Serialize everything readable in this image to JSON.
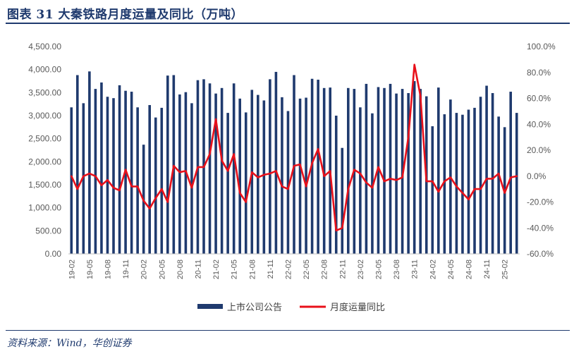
{
  "header": {
    "title": "图表 31    大秦铁路月度运量及同比（万吨）"
  },
  "footer": {
    "source": "资料来源：Wind，华创证券"
  },
  "colors": {
    "bar": "#1f3a6e",
    "line": "#e8101a",
    "accent": "#1f3a6e"
  },
  "chart_data": {
    "type": "bar",
    "title": "大秦铁路月度运量及同比（万吨）",
    "x_tick_labels": [
      "19-02",
      "19-05",
      "19-08",
      "19-11",
      "20-02",
      "20-05",
      "20-08",
      "20-11",
      "21-02",
      "21-05",
      "21-08",
      "21-11",
      "22-02",
      "22-05",
      "22-08",
      "22-11",
      "23-02",
      "23-05",
      "23-08",
      "23-11",
      "24-02",
      "24-05",
      "24-08",
      "24-11",
      "25-02"
    ],
    "y_left": {
      "ylim": [
        0,
        4500
      ],
      "ticks": [
        "0.00",
        "500.00",
        "1,000.00",
        "1,500.00",
        "2,000.00",
        "2,500.00",
        "3,000.00",
        "3,500.00",
        "4,000.00",
        "4,500.00"
      ]
    },
    "y_right": {
      "ylim": [
        -60,
        100
      ],
      "ticks": [
        "-60.0%",
        "-40.0%",
        "-20.0%",
        "0.0%",
        "20.0%",
        "40.0%",
        "60.0%",
        "80.0%",
        "100.0%"
      ]
    },
    "legend": [
      "上市公司公告",
      "月度运量同比"
    ],
    "series": [
      {
        "name": "上市公司公告",
        "type": "bar",
        "axis": "left",
        "values": [
          3180,
          3880,
          3270,
          3960,
          3580,
          3720,
          3410,
          3380,
          3660,
          3540,
          3520,
          3180,
          2370,
          3230,
          2960,
          3170,
          3870,
          3880,
          3460,
          3510,
          3270,
          3770,
          3790,
          3700,
          3480,
          3600,
          3060,
          3700,
          3370,
          3070,
          3560,
          3450,
          3330,
          3790,
          3950,
          3400,
          3100,
          3880,
          3370,
          3390,
          3800,
          3780,
          3600,
          3610,
          3000,
          2300,
          3600,
          3580,
          3180,
          3690,
          3050,
          3620,
          3600,
          3690,
          3480,
          3580,
          3490,
          3750,
          3580,
          3420,
          2770,
          3610,
          3030,
          3350,
          3060,
          3020,
          3130,
          3170,
          3410,
          3650,
          3490,
          2980,
          2750,
          3520,
          3060
        ]
      },
      {
        "name": "月度运量同比",
        "type": "line",
        "axis": "right",
        "values": [
          0,
          -10,
          0,
          2,
          0,
          -7,
          -3,
          -9,
          -11,
          5,
          -8,
          -8,
          -19,
          -25,
          -17,
          -10,
          -20,
          8,
          3,
          4,
          -9,
          7,
          7,
          17,
          44,
          12,
          4,
          17,
          -13,
          -20,
          3,
          -1,
          1,
          2,
          4,
          -8,
          -10,
          8,
          9,
          -8,
          10,
          21,
          0,
          4,
          -42,
          -40,
          -10,
          5,
          2,
          -5,
          -9,
          7,
          -4,
          -2,
          -3,
          -1,
          30,
          86,
          62,
          -4,
          -4,
          -12,
          -4,
          -1,
          -8,
          -13,
          -18,
          -10,
          -10,
          -2,
          -2,
          2,
          -13,
          -1,
          0
        ]
      }
    ]
  }
}
